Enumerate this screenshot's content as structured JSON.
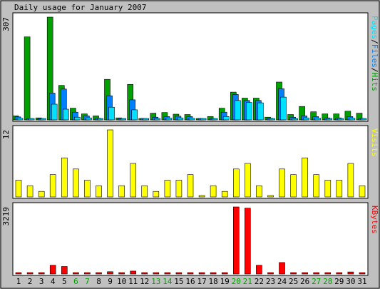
{
  "chart_data": {
    "type": "bar",
    "title": "Daily usage for January 2007",
    "days": [
      "1",
      "2",
      "3",
      "4",
      "5",
      "6",
      "7",
      "8",
      "9",
      "10",
      "11",
      "12",
      "13",
      "14",
      "15",
      "16",
      "17",
      "18",
      "19",
      "20",
      "21",
      "22",
      "23",
      "24",
      "25",
      "26",
      "27",
      "28",
      "29",
      "30",
      "31"
    ],
    "weekend_days": [
      "6",
      "7",
      "13",
      "14",
      "20",
      "21",
      "27",
      "28"
    ],
    "panels": [
      {
        "label": "Pages/Files/Hits",
        "ymax": 307,
        "ymax_label": "307",
        "series": [
          {
            "name": "Hits",
            "color": "#00a000",
            "values": [
              12,
              248,
              6,
              307,
              103,
              35,
              18,
              12,
              121,
              6,
              106,
              3,
              20,
              22,
              17,
              16,
              3,
              10,
              35,
              83,
              65,
              65,
              8,
              113,
              16,
              40,
              24,
              18,
              18,
              26,
              20
            ]
          },
          {
            "name": "Files",
            "color": "#0080ff",
            "values": [
              9,
              1,
              4,
              80,
              92,
              23,
              12,
              5,
              72,
              3,
              60,
              1,
              8,
              10,
              11,
              10,
              1,
              4,
              23,
              76,
              58,
              58,
              5,
              93,
              8,
              12,
              10,
              6,
              6,
              10,
              4
            ]
          },
          {
            "name": "Pages",
            "color": "#00e0ff",
            "values": [
              5,
              1,
              3,
              47,
              32,
              8,
              6,
              3,
              38,
              2,
              30,
              1,
              4,
              5,
              6,
              5,
              1,
              2,
              10,
              58,
              52,
              51,
              3,
              68,
              4,
              6,
              5,
              3,
              3,
              5,
              2
            ]
          }
        ]
      },
      {
        "label": "Visits",
        "ymax": 12,
        "ymax_label": "12",
        "series": [
          {
            "name": "Visits",
            "color": "#ffff00",
            "values": [
              3,
              2,
              1,
              4,
              7,
              5,
              3,
              2,
              12,
              2,
              6,
              2,
              1,
              3,
              3,
              4,
              0,
              2,
              1,
              5,
              6,
              2,
              0,
              5,
              4,
              7,
              4,
              3,
              3,
              6,
              2
            ]
          }
        ]
      },
      {
        "label": "KBytes",
        "ymax": 3219,
        "ymax_label": "3219",
        "series": [
          {
            "name": "KBytes",
            "color": "#ff0000",
            "values": [
              25,
              55,
              20,
              420,
              360,
              50,
              35,
              20,
              110,
              20,
              140,
              15,
              40,
              35,
              25,
              25,
              10,
              15,
              55,
              3219,
              3160,
              420,
              25,
              550,
              30,
              30,
              25,
              20,
              20,
              100,
              25
            ]
          }
        ]
      }
    ]
  }
}
